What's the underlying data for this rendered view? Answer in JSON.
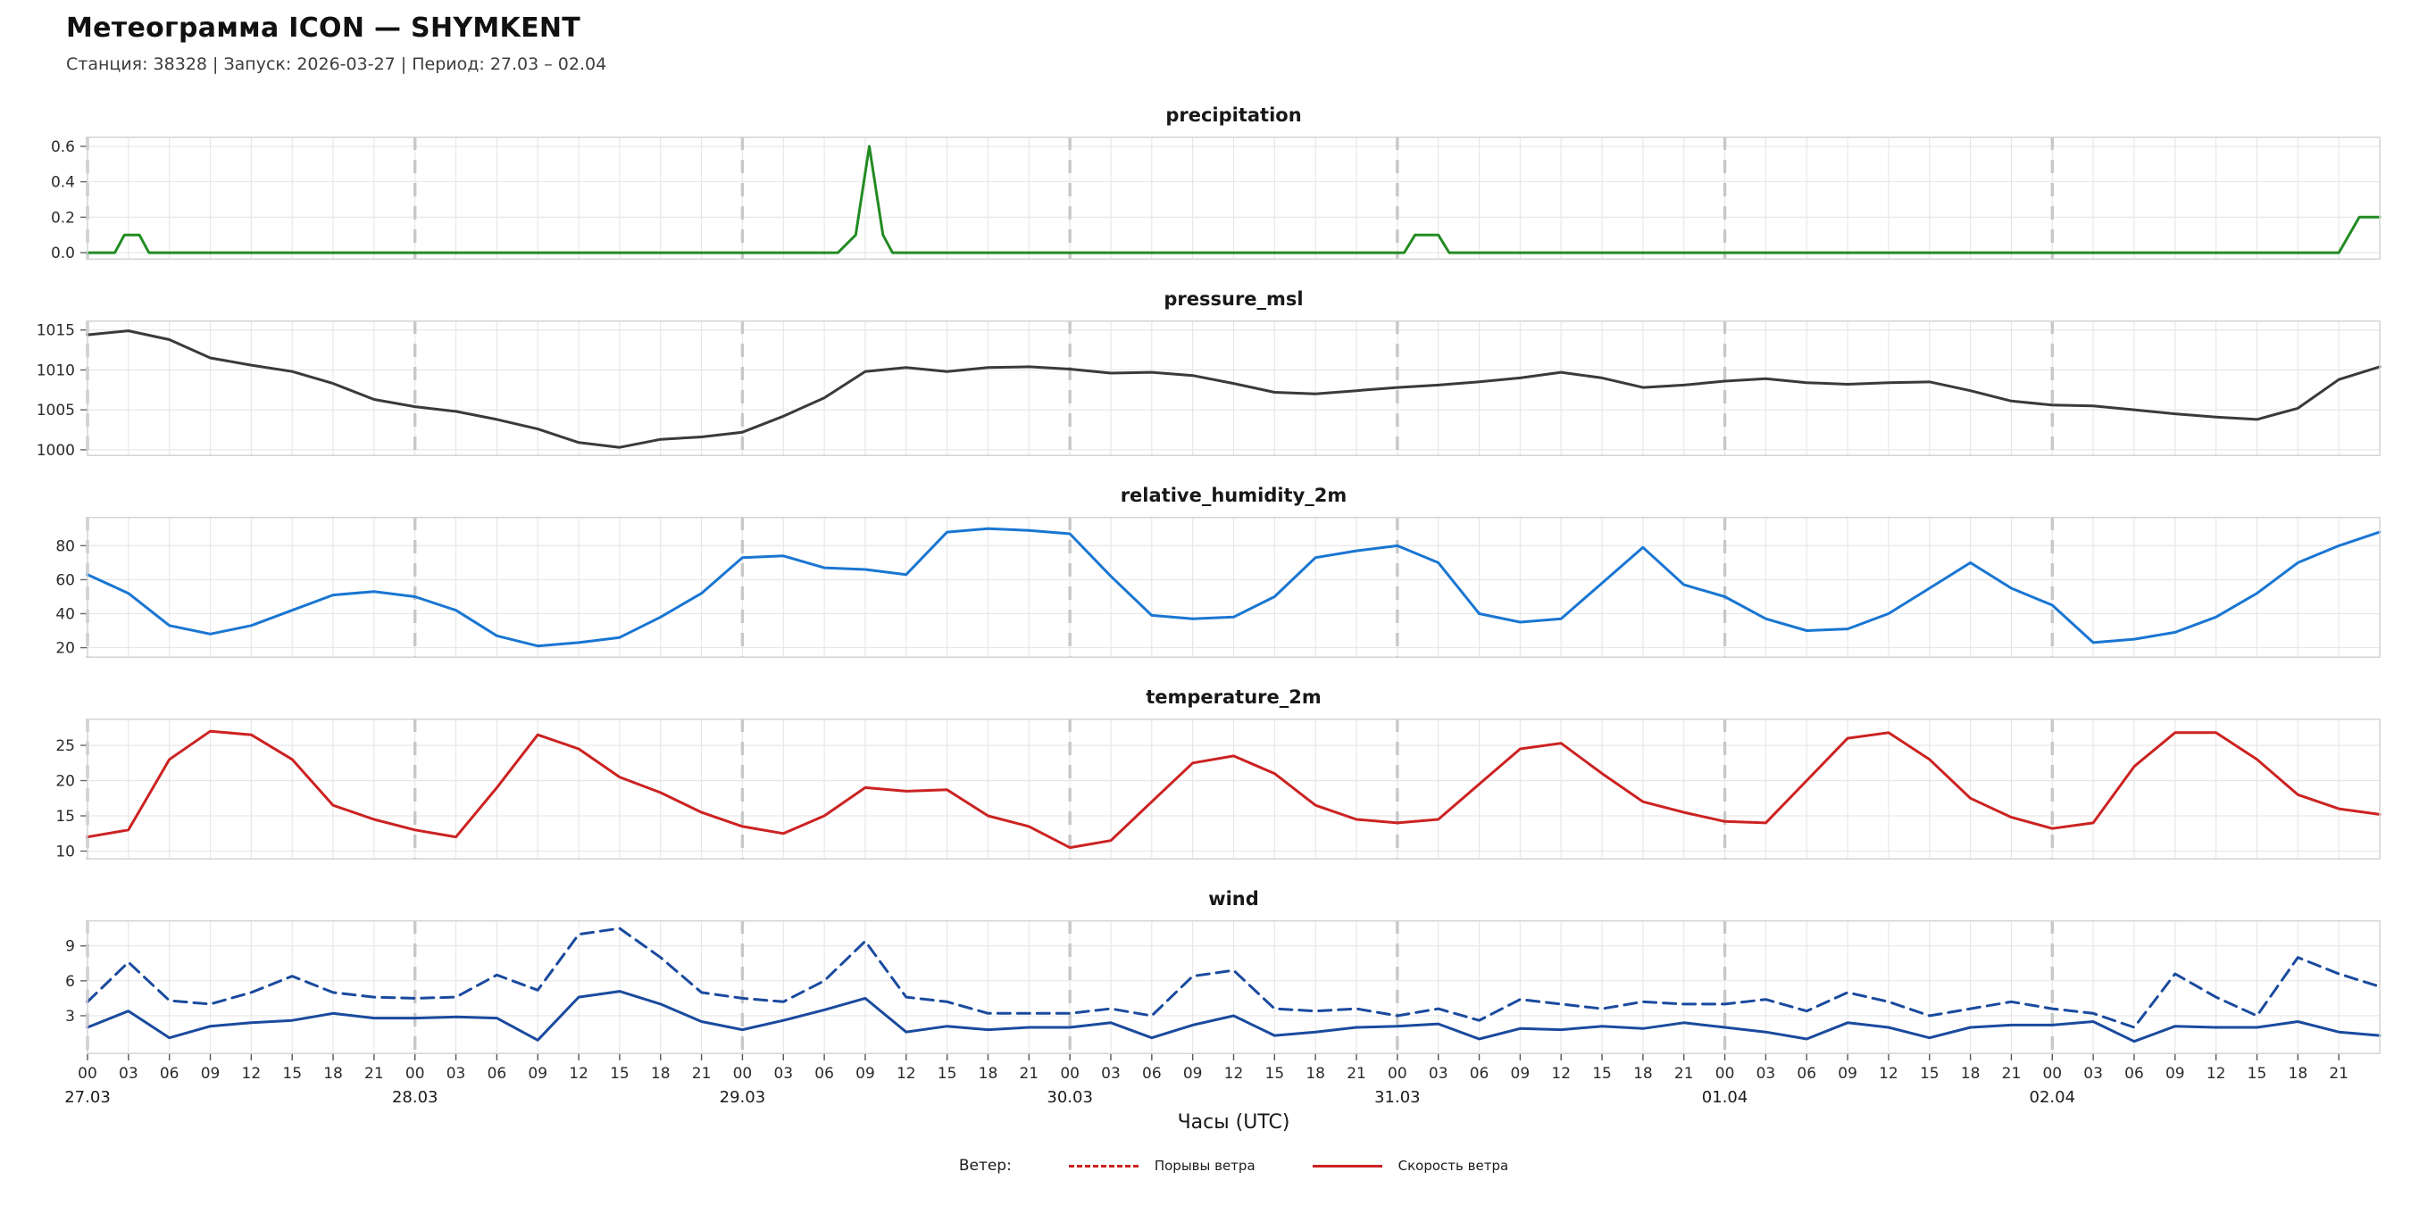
{
  "header": {
    "title": "Метеограмма ICON — SHYMKENT",
    "subtitle": "Станция: 38328  | Запуск: 2026-03-27  | Период: 27.03 – 02.04"
  },
  "xaxis": {
    "label": "Часы (UTC)",
    "hours_total": 168,
    "tick_step": 3,
    "hour_labels": [
      "00",
      "03",
      "06",
      "09",
      "12",
      "15",
      "18",
      "21"
    ],
    "days": [
      "27.03",
      "28.03",
      "29.03",
      "30.03",
      "31.03",
      "01.04",
      "02.04"
    ]
  },
  "legend": {
    "prefix": "Ветер:",
    "items": [
      {
        "label": "Порывы ветра",
        "style": "dashed",
        "color": "#cc2222"
      },
      {
        "label": "Скорость ветра",
        "style": "solid",
        "color": "#cc2222"
      }
    ]
  },
  "chart_data": [
    {
      "type": "line",
      "title": "precipitation",
      "ylim": [
        -0.04,
        0.655
      ],
      "ytick_values": [
        0.0,
        0.2,
        0.4,
        0.6
      ],
      "ytick_labels": [
        "0.0",
        "0.2",
        "0.4",
        "0.6"
      ],
      "series": [
        {
          "name": "precipitation",
          "color": "#228B22",
          "dash": false,
          "x": [
            0,
            2,
            2.7,
            3.8,
            4.5,
            48,
            55,
            56.3,
            57.3,
            58.3,
            59,
            96.5,
            97.3,
            99,
            99.8,
            144,
            163.5,
            165,
            166.5,
            168
          ],
          "values": [
            0,
            0,
            0.1,
            0.1,
            0,
            0,
            0,
            0.1,
            0.6,
            0.1,
            0,
            0,
            0.1,
            0.1,
            0,
            0,
            0,
            0,
            0.2,
            0.2
          ]
        }
      ]
    },
    {
      "type": "line",
      "title": "pressure_msl",
      "ylim": [
        999.2,
        1016.2
      ],
      "ytick_values": [
        1000,
        1005,
        1010,
        1015
      ],
      "ytick_labels": [
        "1000",
        "1005",
        "1010",
        "1015"
      ],
      "series": [
        {
          "name": "pressure_msl",
          "color": "#3a3a3a",
          "dash": false,
          "x_start": 0,
          "x_step": 3,
          "values": [
            1014.4,
            1014.9,
            1013.8,
            1011.5,
            1010.6,
            1009.8,
            1008.3,
            1006.3,
            1005.4,
            1004.8,
            1003.8,
            1002.6,
            1000.9,
            1000.3,
            1001.3,
            1001.6,
            1002.2,
            1004.2,
            1006.5,
            1009.8,
            1010.3,
            1009.8,
            1010.3,
            1010.4,
            1010.1,
            1009.6,
            1009.7,
            1009.3,
            1008.3,
            1007.2,
            1007.0,
            1007.4,
            1007.8,
            1008.1,
            1008.5,
            1009.0,
            1009.7,
            1009.0,
            1007.8,
            1008.1,
            1008.6,
            1008.9,
            1008.4,
            1008.2,
            1008.4,
            1008.5,
            1007.4,
            1006.1,
            1005.6,
            1005.5,
            1005.0,
            1004.5,
            1004.1,
            1003.8,
            1005.2,
            1008.8,
            1010.4
          ]
        }
      ]
    },
    {
      "type": "line",
      "title": "relative_humidity_2m",
      "ylim": [
        14,
        97
      ],
      "ytick_values": [
        20,
        40,
        60,
        80
      ],
      "ytick_labels": [
        "20",
        "40",
        "60",
        "80"
      ],
      "series": [
        {
          "name": "relative_humidity_2m",
          "color": "#1976d2",
          "dash": false,
          "x_start": 0,
          "x_step": 3,
          "values": [
            63,
            52,
            33,
            28,
            33,
            42,
            51,
            53,
            50,
            42,
            27,
            21,
            23,
            26,
            38,
            52,
            73,
            74,
            67,
            66,
            63,
            88,
            90,
            89,
            87,
            62,
            39,
            37,
            38,
            50,
            73,
            77,
            80,
            70,
            40,
            35,
            37,
            58,
            79,
            57,
            50,
            37,
            30,
            31,
            40,
            55,
            70,
            55,
            45,
            23,
            25,
            29,
            38,
            52,
            70,
            80,
            88
          ]
        }
      ]
    },
    {
      "type": "line",
      "title": "temperature_2m",
      "ylim": [
        8.8,
        28.8
      ],
      "ytick_values": [
        10,
        15,
        20,
        25
      ],
      "ytick_labels": [
        "10",
        "15",
        "20",
        "25"
      ],
      "series": [
        {
          "name": "temperature_2m",
          "color": "#cc2222",
          "dash": false,
          "x_start": 0,
          "x_step": 3,
          "values": [
            12,
            13,
            23,
            27,
            26.5,
            23,
            16.5,
            14.5,
            13,
            12,
            19,
            26.5,
            24.5,
            20.5,
            18.3,
            15.5,
            13.5,
            12.5,
            15,
            19,
            18.5,
            18.7,
            15,
            13.5,
            10.5,
            11.5,
            17,
            22.5,
            23.5,
            21,
            16.5,
            14.5,
            14,
            14.5,
            19.5,
            24.5,
            25.3,
            21,
            17,
            15.5,
            14.2,
            14,
            20,
            26,
            26.8,
            23,
            17.5,
            14.8,
            13.2,
            14,
            22,
            26.8,
            26.8,
            23,
            18,
            16,
            15.2
          ]
        }
      ]
    },
    {
      "type": "line",
      "title": "wind",
      "ylim": [
        -0.3,
        11.2
      ],
      "ytick_values": [
        3,
        6,
        9
      ],
      "ytick_labels": [
        "3",
        "6",
        "9"
      ],
      "series": [
        {
          "name": "Порывы ветра",
          "color": "#1a4a9e",
          "dash": true,
          "x_start": 0,
          "x_step": 3,
          "values": [
            4.2,
            7.6,
            4.3,
            4.0,
            5.0,
            6.4,
            5.0,
            4.6,
            4.5,
            4.6,
            6.5,
            5.2,
            10.0,
            10.5,
            8.0,
            5.0,
            4.5,
            4.2,
            6.0,
            9.4,
            4.6,
            4.2,
            3.2,
            3.2,
            3.2,
            3.6,
            3.0,
            6.4,
            6.9,
            3.6,
            3.4,
            3.6,
            3.0,
            3.6,
            2.6,
            4.4,
            4.0,
            3.6,
            4.2,
            4.0,
            4.0,
            4.4,
            3.4,
            5.0,
            4.2,
            3.0,
            3.6,
            4.2,
            3.6,
            3.2,
            2.0,
            6.6,
            4.6,
            3.0,
            8.0,
            6.6,
            5.5
          ]
        },
        {
          "name": "Скорость ветра",
          "color": "#1a4a9e",
          "dash": false,
          "x_start": 0,
          "x_step": 3,
          "values": [
            2.0,
            3.4,
            1.1,
            2.1,
            2.4,
            2.6,
            3.2,
            2.8,
            2.8,
            2.9,
            2.8,
            0.9,
            4.6,
            5.1,
            4.0,
            2.5,
            1.8,
            2.6,
            3.5,
            4.5,
            1.6,
            2.1,
            1.8,
            2.0,
            2.0,
            2.4,
            1.1,
            2.2,
            3.0,
            1.3,
            1.6,
            2.0,
            2.1,
            2.3,
            1.0,
            1.9,
            1.8,
            2.1,
            1.9,
            2.4,
            2.0,
            1.6,
            1.0,
            2.4,
            2.0,
            1.1,
            2.0,
            2.2,
            2.2,
            2.5,
            0.8,
            2.1,
            2.0,
            2.0,
            2.5,
            1.6,
            1.3
          ]
        }
      ]
    }
  ]
}
